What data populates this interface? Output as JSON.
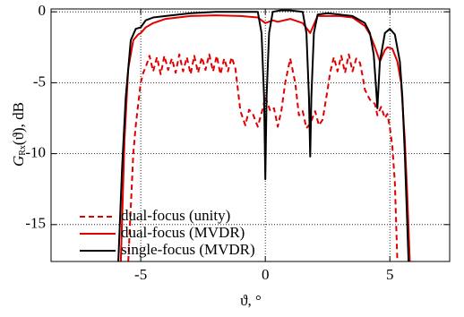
{
  "chart_data": {
    "type": "line",
    "y_label": {
      "symbol": "G",
      "subscript": "Rx",
      "rest": "(ϑ), dB"
    },
    "x_label": "ϑ, °",
    "xlim": [
      -8.6,
      7.4
    ],
    "ylim": [
      -17.6,
      0.2
    ],
    "xticks": [
      -5,
      0,
      5
    ],
    "yticks": [
      0,
      -5,
      -10,
      -15
    ],
    "grid": true,
    "legend": "lower-left",
    "series": [
      {
        "name": "dual-focus (unity)",
        "color": "#e00000",
        "dashed": true,
        "x": [
          -5.5,
          -5.3,
          -5.2,
          -5.1,
          -5.0,
          -4.9,
          -4.8,
          -4.65,
          -4.5,
          -4.35,
          -4.2,
          -4.05,
          -3.9,
          -3.75,
          -3.6,
          -3.45,
          -3.3,
          -3.15,
          -3.0,
          -2.85,
          -2.7,
          -2.55,
          -2.4,
          -2.25,
          -2.1,
          -1.95,
          -1.8,
          -1.65,
          -1.5,
          -1.35,
          -1.2,
          -1.1,
          -1.0,
          -0.8,
          -0.65,
          -0.5,
          -0.3,
          -0.1,
          0.0,
          0.2,
          0.35,
          0.5,
          0.65,
          0.8,
          1.0,
          1.2,
          1.35,
          1.5,
          1.65,
          1.8,
          2.0,
          2.15,
          2.3,
          2.5,
          2.6,
          2.75,
          2.9,
          3.05,
          3.2,
          3.35,
          3.5,
          3.65,
          3.8,
          3.9,
          4.0,
          4.2,
          4.4,
          4.5,
          4.65,
          4.8,
          4.9,
          5.0,
          5.1,
          5.2,
          5.3
        ],
        "values": [
          -17.6,
          -10,
          -8,
          -6.5,
          -5,
          -4.3,
          -3.9,
          -3.1,
          -4.2,
          -3.2,
          -4.4,
          -3.1,
          -4.1,
          -3.3,
          -4.3,
          -3.0,
          -4.2,
          -3.2,
          -4.4,
          -3.1,
          -4.3,
          -3.2,
          -4.1,
          -3.0,
          -4.2,
          -3.1,
          -4.4,
          -3.3,
          -4.2,
          -3.2,
          -4.0,
          -5.5,
          -7,
          -8,
          -6.9,
          -7.2,
          -8.1,
          -6.8,
          -6.0,
          -7.0,
          -6.8,
          -8.1,
          -6.9,
          -5.0,
          -3.3,
          -5.0,
          -7.3,
          -7.0,
          -8.2,
          -7.9,
          -7.0,
          -8.0,
          -7.6,
          -5.5,
          -4.3,
          -3.2,
          -4.2,
          -3.1,
          -4.3,
          -3.0,
          -4.2,
          -3.3,
          -3.6,
          -4.5,
          -5.5,
          -6.2,
          -6.5,
          -7.3,
          -6.7,
          -7.5,
          -7.2,
          -8.2,
          -9.5,
          -12,
          -17.6
        ]
      },
      {
        "name": "dual-focus (MVDR)",
        "color": "#e00000",
        "dashed": false,
        "x": [
          -5.8,
          -5.65,
          -5.5,
          -5.3,
          -5.1,
          -5.0,
          -4.8,
          -4.5,
          -4.0,
          -3.0,
          -2.0,
          -1.0,
          -0.3,
          0.0,
          0.3,
          0.5,
          1.0,
          1.5,
          1.8,
          2.1,
          2.5,
          3.0,
          3.5,
          4.0,
          4.2,
          4.4,
          4.6,
          4.8,
          4.9,
          5.1,
          5.3,
          5.45,
          5.6,
          5.7,
          5.8
        ],
        "values": [
          -17.6,
          -9,
          -4,
          -2,
          -1.6,
          -1.5,
          -1.1,
          -0.8,
          -0.5,
          -0.3,
          -0.25,
          -0.3,
          -0.4,
          -0.8,
          -0.6,
          -0.7,
          -0.5,
          -0.8,
          -1.5,
          -0.3,
          -0.3,
          -0.3,
          -0.4,
          -1.0,
          -1.6,
          -2.5,
          -3.5,
          -2.7,
          -2.5,
          -2.6,
          -3.5,
          -5,
          -9,
          -13,
          -17.6
        ]
      },
      {
        "name": "single-focus (MVDR)",
        "color": "#000000",
        "dashed": false,
        "x": [
          -5.9,
          -5.75,
          -5.6,
          -5.4,
          -5.2,
          -5.0,
          -4.8,
          -4.5,
          -4.0,
          -3.0,
          -2.0,
          -1.0,
          -0.3,
          -0.15,
          -0.05,
          0.0,
          0.05,
          0.15,
          0.3,
          0.6,
          1.0,
          1.5,
          1.65,
          1.75,
          1.8,
          1.85,
          1.95,
          2.1,
          2.5,
          3.0,
          3.5,
          4.0,
          4.2,
          4.35,
          4.45,
          4.5,
          4.6,
          4.8,
          5.0,
          5.2,
          5.4,
          5.5,
          5.6,
          5.75
        ],
        "values": [
          -17.6,
          -11,
          -6,
          -2,
          -1.2,
          -1.1,
          -0.6,
          -0.4,
          -0.3,
          -0.1,
          0.0,
          0.0,
          0.0,
          -1.5,
          -6,
          -11.8,
          -6,
          -1.5,
          0.0,
          0.1,
          0.1,
          0.0,
          -1.5,
          -6,
          -10.2,
          -6,
          -1.5,
          -0.2,
          -0.1,
          -0.2,
          -0.3,
          -0.8,
          -1.5,
          -3,
          -5.5,
          -6.8,
          -3.5,
          -1.5,
          -1.2,
          -1.6,
          -3.5,
          -6,
          -10,
          -17.6
        ]
      }
    ]
  }
}
